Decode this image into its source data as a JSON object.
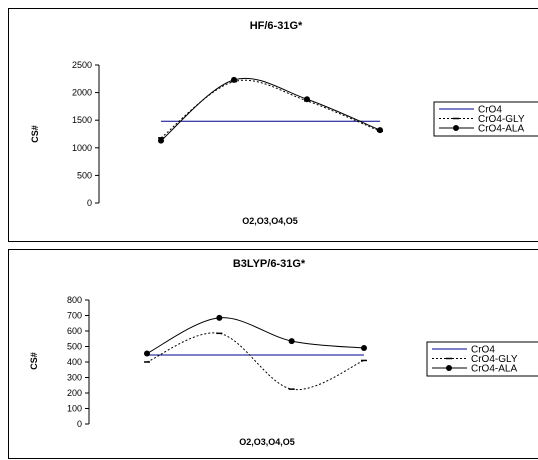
{
  "chart_data": [
    {
      "type": "line",
      "title": "HF/6-31G*",
      "xlabel": "O2,O3,O4,O5",
      "ylabel": "CS#",
      "ylim": [
        0,
        2500
      ],
      "yticks": [
        "0",
        "500",
        "1000",
        "1500",
        "2000",
        "2500"
      ],
      "x": [
        1,
        2,
        3,
        4
      ],
      "series": [
        {
          "name": "CrO4",
          "values": [
            1480,
            1480,
            1480,
            1480
          ],
          "color": "#00008b",
          "style": "solid",
          "marker": "none"
        },
        {
          "name": "CrO4-GLY",
          "values": [
            1180,
            2200,
            1850,
            1300
          ],
          "color": "#000000",
          "style": "dotted",
          "marker": "dash"
        },
        {
          "name": "CrO4-ALA",
          "values": [
            1130,
            2230,
            1880,
            1320
          ],
          "color": "#000000",
          "style": "solid",
          "marker": "circle"
        }
      ],
      "legend_position": "right"
    },
    {
      "type": "line",
      "title": "B3LYP/6-31G*",
      "xlabel": "O2,O3,O4,O5",
      "ylabel": "CS#",
      "ylim": [
        0,
        800
      ],
      "yticks": [
        "0",
        "100",
        "200",
        "300",
        "400",
        "500",
        "600",
        "700",
        "800"
      ],
      "x": [
        1,
        2,
        3,
        4
      ],
      "series": [
        {
          "name": "CrO4",
          "values": [
            445,
            445,
            445,
            445
          ],
          "color": "#00008b",
          "style": "solid",
          "marker": "none"
        },
        {
          "name": "CrO4-GLY",
          "values": [
            400,
            585,
            225,
            410
          ],
          "color": "#000000",
          "style": "dotted",
          "marker": "dash"
        },
        {
          "name": "CrO4-ALA",
          "values": [
            455,
            685,
            535,
            490
          ],
          "color": "#000000",
          "style": "solid",
          "marker": "circle"
        }
      ],
      "legend_position": "right"
    }
  ]
}
